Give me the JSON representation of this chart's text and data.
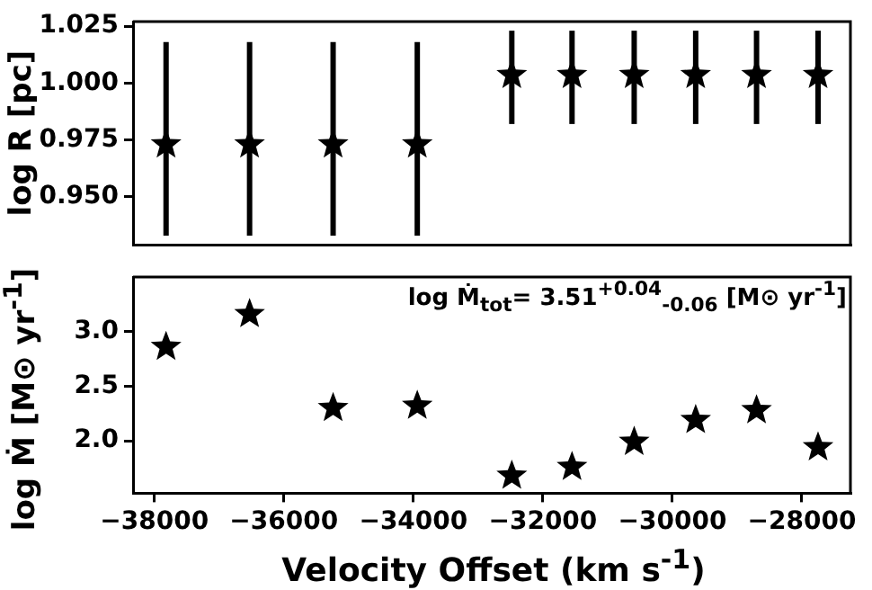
{
  "chart_data": [
    {
      "type": "scatter",
      "ylabel": "log R [pc]",
      "x": [
        -37820,
        -36530,
        -35240,
        -33940,
        -32480,
        -31550,
        -30590,
        -29640,
        -28700,
        -27750
      ],
      "series": [
        {
          "color": "#000000",
          "values": [
            0.973,
            0.973,
            0.973,
            0.973,
            1.0035,
            1.0035,
            1.0035,
            1.0035,
            1.0035,
            1.0035
          ],
          "errors": [
            [
              0.933,
              1.018
            ],
            [
              0.933,
              1.018
            ],
            [
              0.933,
              1.018
            ],
            [
              0.933,
              1.018
            ],
            [
              0.982,
              1.023
            ],
            [
              0.982,
              1.023
            ],
            [
              0.982,
              1.023
            ],
            [
              0.982,
              1.023
            ],
            [
              0.982,
              1.023
            ],
            [
              0.982,
              1.023
            ]
          ]
        }
      ],
      "marker": "star",
      "xlim": [
        -38330,
        -27250
      ],
      "ylim": [
        0.929,
        1.027
      ],
      "yticks": [
        {
          "value": 0.95,
          "label": "0.950"
        },
        0.975,
        {
          "value": 1.0,
          "label": "1.000"
        },
        1.025
      ],
      "tick_labels": "y"
    },
    {
      "type": "scatter",
      "xlabel": "Velocity Offset (km s$^{-1}$)",
      "ylabel": "log Ṁ [M⊙ yr$^{-1}$]",
      "x": [
        -37820,
        -36530,
        -35240,
        -33940,
        -32480,
        -31550,
        -30590,
        -29640,
        -28700,
        -27750
      ],
      "series": [
        {
          "color": "#000000",
          "values": [
            2.86,
            3.16,
            2.3,
            2.32,
            1.68,
            1.76,
            1.99,
            2.19,
            2.28,
            1.94
          ]
        }
      ],
      "marker": "star",
      "xlim": [
        -38330,
        -27250
      ],
      "ylim": [
        1.52,
        3.5
      ],
      "xticks": [
        {
          "value": -38000,
          "label": "−38000"
        },
        {
          "value": -36000,
          "label": "−36000"
        },
        {
          "value": -34000,
          "label": "−34000"
        },
        {
          "value": -32000,
          "label": "−32000"
        },
        {
          "value": -30000,
          "label": "−30000"
        },
        {
          "value": -28000,
          "label": "−28000"
        }
      ],
      "yticks": [
        {
          "value": 2.0,
          "label": "2.0"
        },
        2.5,
        {
          "value": 3.0,
          "label": "3.0"
        }
      ],
      "annotations": [
        "log Ṁ$_{tot}$= 3.51$^{+0.04}$$_{-0.06}$ [M⊙ yr$^{-1}$]"
      ]
    }
  ]
}
